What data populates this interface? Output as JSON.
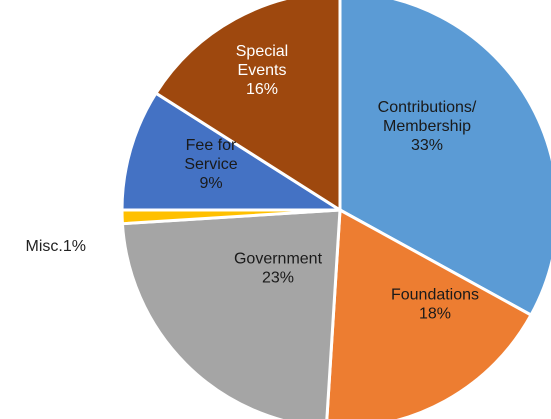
{
  "chart_data": {
    "type": "pie",
    "title": "",
    "slices": [
      {
        "lines": [
          "Contributions/",
          "Membership"
        ],
        "value": 33,
        "value_label": "33%",
        "color": "#5B9BD5",
        "label_color": "#1a1a1a"
      },
      {
        "lines": [
          "Foundations"
        ],
        "value": 18,
        "value_label": "18%",
        "color": "#ED7D31",
        "label_color": "#1a1a1a"
      },
      {
        "lines": [
          "Government"
        ],
        "value": 23,
        "value_label": "23%",
        "color": "#A5A5A5",
        "label_color": "#1a1a1a"
      },
      {
        "lines": [
          "Misc.1%"
        ],
        "value": 1,
        "value_label": "",
        "color": "#FFC000",
        "label_color": "#222222",
        "outside": true
      },
      {
        "lines": [
          "Fee for",
          "Service"
        ],
        "value": 9,
        "value_label": "9%",
        "color": "#4472C4",
        "label_color": "#1a1a1a"
      },
      {
        "lines": [
          "Special",
          "Events"
        ],
        "value": 16,
        "value_label": "16%",
        "color": "#9E480E",
        "label_color": "#ffffff"
      }
    ]
  }
}
